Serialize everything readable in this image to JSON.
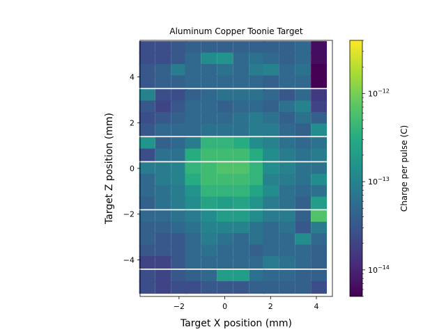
{
  "chart_data": {
    "type": "heatmap",
    "title": "Aluminum Copper Toonie Target",
    "xlabel": "Target X position (mm)",
    "ylabel": "Target Z position (mm)",
    "colorbar_label": "Charge per pulse (C)",
    "colormap": "viridis",
    "color_scale": "log",
    "color_range": [
      5e-15,
      4e-12
    ],
    "colorbar_ticks": [
      {
        "value": 1e-14,
        "mantissa": "10",
        "exponent": "−14"
      },
      {
        "value": 1e-13,
        "mantissa": "10",
        "exponent": "−13"
      },
      {
        "value": 1e-12,
        "mantissa": "10",
        "exponent": "−12"
      }
    ],
    "xlim": [
      -3.7,
      4.7
    ],
    "ylim": [
      -5.6,
      5.6
    ],
    "x_ticks": [
      {
        "value": -2,
        "label": "−2"
      },
      {
        "value": 0,
        "label": "0"
      },
      {
        "value": 2,
        "label": "2"
      },
      {
        "value": 4,
        "label": "4"
      }
    ],
    "y_ticks": [
      {
        "value": -4,
        "label": "−4"
      },
      {
        "value": -2,
        "label": "−2"
      },
      {
        "value": 0,
        "label": "0"
      },
      {
        "value": 2,
        "label": "2"
      },
      {
        "value": 4,
        "label": "4"
      }
    ],
    "x_centers": [
      -3.4,
      -2.7,
      -2.0,
      -1.4,
      -0.7,
      0.0,
      0.7,
      1.4,
      2.0,
      2.7,
      3.4,
      4.1
    ],
    "y_centers": [
      5.3,
      4.8,
      4.3,
      3.8,
      3.2,
      2.7,
      2.2,
      1.7,
      1.1,
      0.6,
      0.0,
      -0.5,
      -1.0,
      -1.5,
      -2.1,
      -2.6,
      -3.1,
      -3.6,
      -4.1,
      -4.7,
      -5.2
    ],
    "cell_width": 0.68,
    "cell_height": 0.53,
    "values_log10": [
      [
        -13.6,
        -13.6,
        -13.5,
        -13.4,
        -13.4,
        -13.4,
        -13.4,
        -13.4,
        -13.4,
        -13.4,
        -13.3,
        -14.2
      ],
      [
        -13.6,
        -13.6,
        -13.5,
        -13.3,
        -12.9,
        -12.8,
        -13.3,
        -13.2,
        -13.3,
        -13.4,
        -13.3,
        -14.2
      ],
      [
        -13.5,
        -13.4,
        -13.1,
        -13.3,
        -13.3,
        -13.2,
        -13.3,
        -13.1,
        -13.0,
        -13.3,
        -13.2,
        -14.5
      ],
      [
        -13.5,
        -13.4,
        -13.4,
        -13.3,
        -13.3,
        -13.3,
        -13.3,
        -13.3,
        -13.4,
        -13.3,
        -13.3,
        -14.3
      ],
      [
        -13.0,
        -13.6,
        -13.6,
        -13.4,
        -13.3,
        -13.2,
        -13.2,
        -13.2,
        -13.3,
        -13.5,
        -13.3,
        -13.8
      ],
      [
        -13.5,
        -13.7,
        -13.5,
        -13.3,
        -13.3,
        -13.4,
        -13.3,
        -13.3,
        -13.4,
        -13.2,
        -13.0,
        -13.7
      ],
      [
        -13.6,
        -13.5,
        -13.4,
        -13.3,
        -13.3,
        -13.3,
        -13.2,
        -13.1,
        -13.2,
        -13.4,
        -13.2,
        -13.4
      ],
      [
        -13.5,
        -13.3,
        -13.3,
        -13.3,
        -13.2,
        -13.2,
        -13.2,
        -13.1,
        -13.1,
        -13.3,
        -13.4,
        -12.9
      ],
      [
        -12.8,
        -13.4,
        -13.3,
        -13.1,
        -12.4,
        -12.4,
        -12.5,
        -12.9,
        -13.0,
        -13.2,
        -13.3,
        -13.2
      ],
      [
        -13.6,
        -13.2,
        -13.2,
        -12.5,
        -12.3,
        -12.3,
        -12.3,
        -12.5,
        -12.9,
        -13.1,
        -13.2,
        -13.1
      ],
      [
        -13.1,
        -13.1,
        -13.0,
        -12.4,
        -12.3,
        -12.2,
        -12.2,
        -12.4,
        -12.9,
        -13.0,
        -13.2,
        -13.2
      ],
      [
        -13.3,
        -13.1,
        -13.0,
        -12.5,
        -12.3,
        -12.3,
        -12.3,
        -12.4,
        -13.0,
        -13.1,
        -13.2,
        -12.9
      ],
      [
        -13.3,
        -13.2,
        -13.1,
        -12.8,
        -12.4,
        -12.4,
        -12.4,
        -12.6,
        -12.9,
        -13.2,
        -13.3,
        -13.2
      ],
      [
        -13.4,
        -13.2,
        -13.1,
        -12.9,
        -12.6,
        -12.7,
        -12.6,
        -12.8,
        -13.1,
        -13.2,
        -13.4,
        -12.7
      ],
      [
        -13.3,
        -13.3,
        -13.2,
        -13.1,
        -12.9,
        -12.7,
        -12.7,
        -12.9,
        -13.1,
        -13.1,
        -13.4,
        -12.2
      ],
      [
        -13.4,
        -13.4,
        -13.3,
        -13.2,
        -13.0,
        -13.0,
        -13.0,
        -13.2,
        -13.3,
        -13.2,
        -13.5,
        -13.1
      ],
      [
        -13.4,
        -13.5,
        -13.5,
        -13.3,
        -13.1,
        -13.2,
        -13.3,
        -13.2,
        -13.3,
        -13.3,
        -12.9,
        -13.3
      ],
      [
        -13.5,
        -13.5,
        -13.5,
        -13.3,
        -13.2,
        -13.3,
        -13.3,
        -13.4,
        -13.3,
        -13.3,
        -13.3,
        -13.4
      ],
      [
        -13.7,
        -13.7,
        -13.5,
        -13.3,
        -13.3,
        -13.3,
        -13.3,
        -13.3,
        -13.1,
        -13.2,
        -13.3,
        -13.4
      ],
      [
        -13.6,
        -13.7,
        -13.5,
        -13.4,
        -13.3,
        -12.7,
        -12.7,
        -13.2,
        -13.3,
        -13.3,
        -13.4,
        -13.4
      ],
      [
        -13.6,
        -13.7,
        -13.6,
        -13.6,
        -13.5,
        -13.5,
        -13.5,
        -13.4,
        -13.4,
        -13.4,
        -13.4,
        -13.6
      ]
    ]
  }
}
